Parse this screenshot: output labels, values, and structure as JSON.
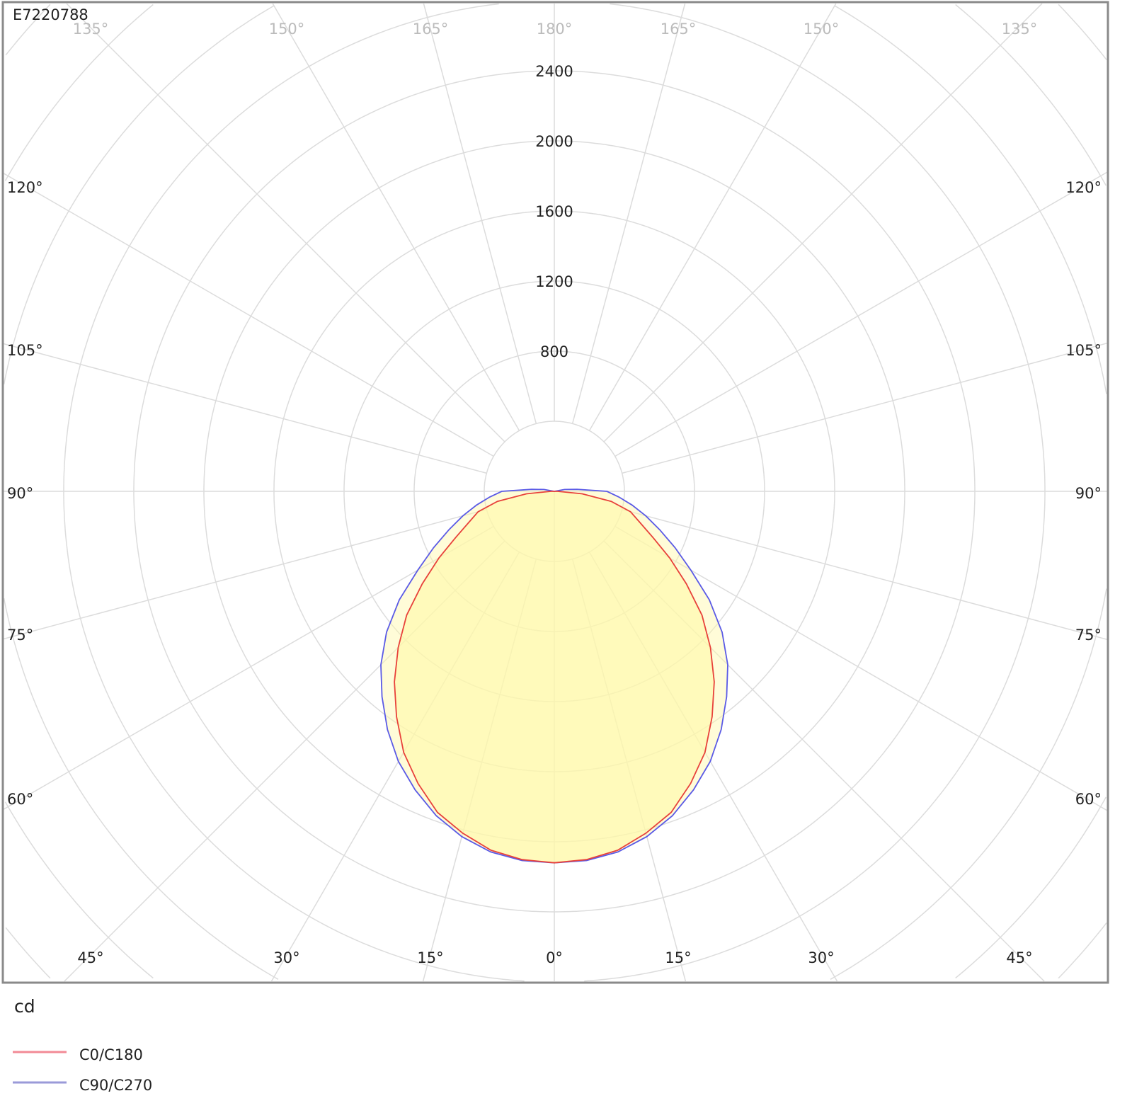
{
  "chart_data": {
    "type": "polar",
    "title": "E7220788",
    "unit_label": "cd",
    "radial_ticks": [
      800,
      1200,
      1600,
      2000,
      2400
    ],
    "radial_grid_step": 400,
    "grid": true,
    "angle_labels_top": [
      "135°",
      "150°",
      "165°",
      "180°",
      "165°",
      "150°",
      "135°"
    ],
    "angle_labels_left": [
      "120°",
      "105°",
      "90°",
      "75°",
      "60°"
    ],
    "angle_labels_right": [
      "120°",
      "105°",
      "90°",
      "75°",
      "60°"
    ],
    "angle_labels_bottom": [
      "45°",
      "30°",
      "15°",
      "0°",
      "15°",
      "30°",
      "45°"
    ],
    "legend_position": "bottom-left",
    "angles": [
      0,
      5,
      10,
      15,
      20,
      25,
      30,
      35,
      40,
      45,
      50,
      55,
      60,
      65,
      70,
      75,
      80,
      85,
      90,
      95,
      100,
      105
    ],
    "series": [
      {
        "name": "C0/C180",
        "color": "#e8413a",
        "values": [
          2120,
          2110,
          2080,
          2020,
          1950,
          1840,
          1720,
          1570,
          1420,
          1260,
          1100,
          920,
          760,
          620,
          520,
          450,
          330,
          160,
          20,
          0,
          0,
          0
        ]
      },
      {
        "name": "C90/C270",
        "color": "#5a5ae6",
        "values": [
          2120,
          2115,
          2090,
          2040,
          1970,
          1880,
          1780,
          1660,
          1530,
          1400,
          1250,
          1080,
          900,
          760,
          640,
          540,
          450,
          370,
          300,
          130,
          60,
          0
        ]
      }
    ],
    "fill_color": "#fff8a8"
  }
}
